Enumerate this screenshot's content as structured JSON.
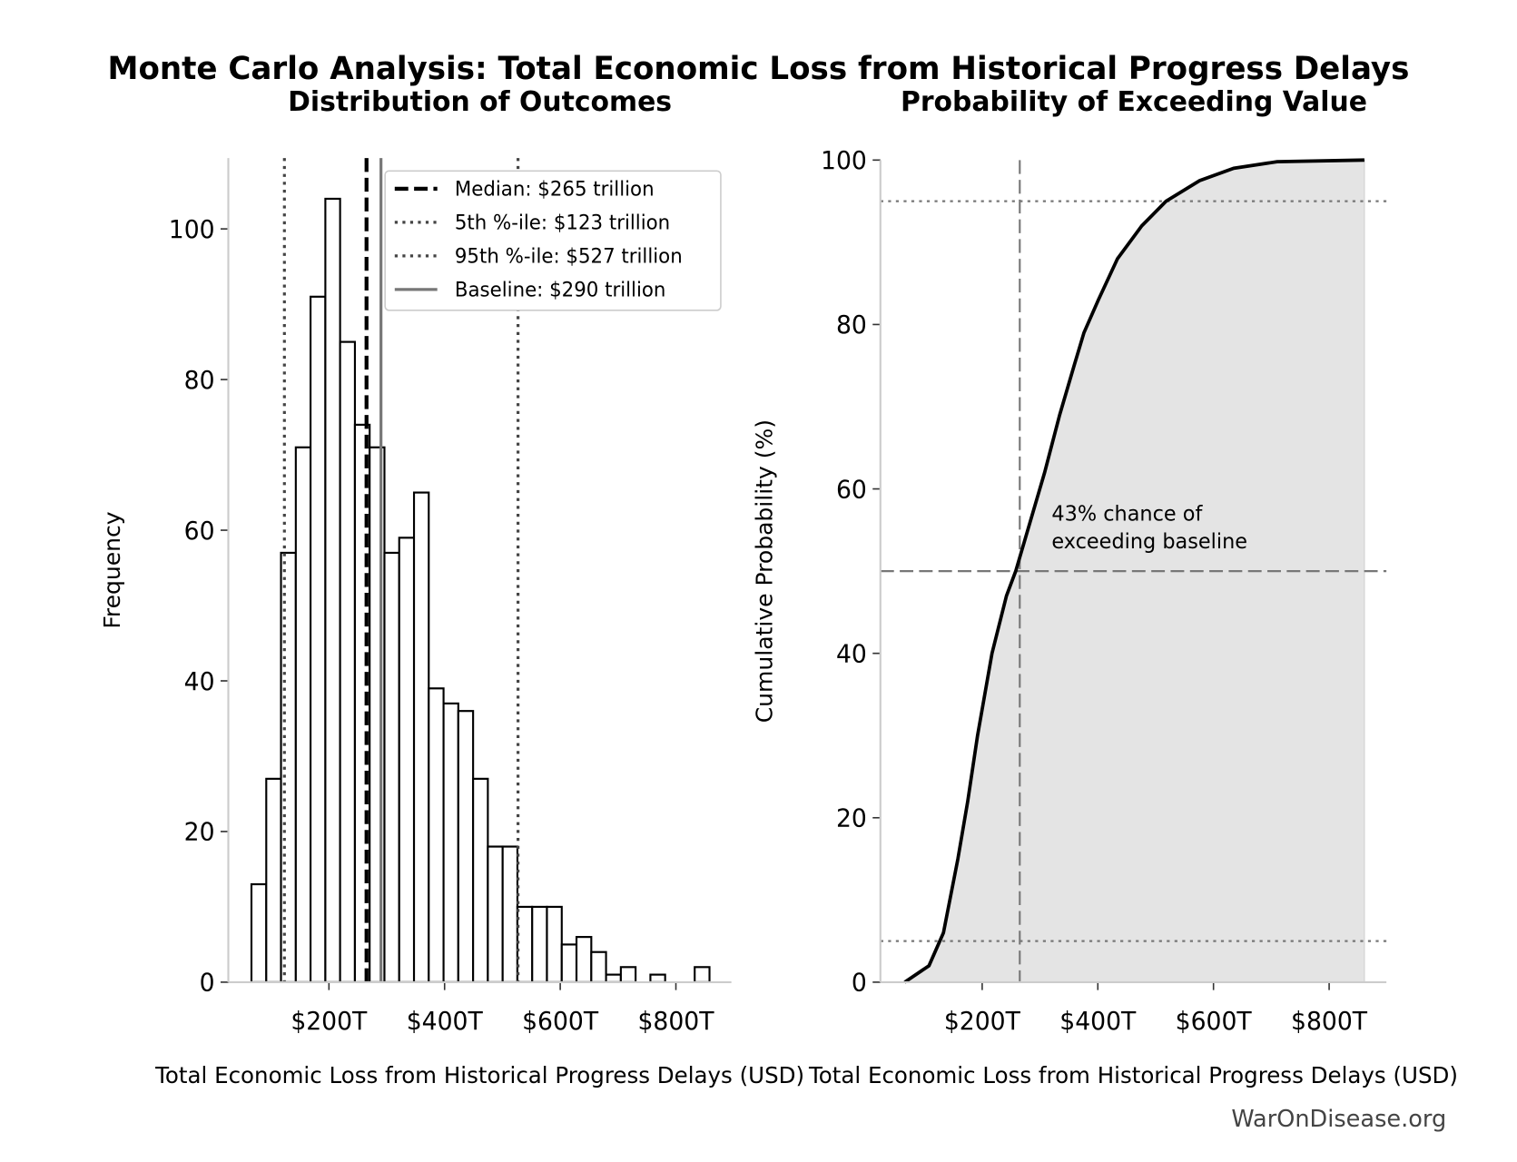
{
  "title": "Monte Carlo Analysis: Total Economic Loss from Historical Progress Delays",
  "footer": "WarOnDisease.org",
  "chart_data": [
    {
      "type": "histogram",
      "title": "Distribution of Outcomes",
      "x_label": "Total Economic Loss from Historical Progress Delays (USD)",
      "y_label": "Frequency",
      "bins": [
        66.0,
        91.6,
        117.1,
        142.7,
        168.2,
        193.8,
        219.3,
        244.9,
        270.4,
        296.0,
        321.5,
        347.1,
        372.6,
        398.2,
        423.7,
        449.3,
        474.8,
        500.4,
        525.9,
        551.5,
        577.0,
        602.6,
        628.1,
        653.7,
        679.2,
        704.8,
        730.3,
        755.9,
        781.4,
        807.0,
        832.5,
        858.1
      ],
      "counts": [
        13,
        27,
        57,
        71,
        91,
        104,
        85,
        74,
        71,
        57,
        59,
        65,
        39,
        37,
        36,
        27,
        18,
        18,
        10,
        10,
        10,
        5,
        6,
        4,
        1,
        2,
        0,
        1,
        0,
        0,
        2
      ],
      "color": "#ffffff",
      "edgecolor": "#000000",
      "xlim": [
        26,
        896
      ],
      "ylim": [
        0,
        109.4
      ],
      "xticks": [
        {
          "value": 200,
          "label": "$200T"
        },
        {
          "value": 400,
          "label": "$400T"
        },
        {
          "value": 600,
          "label": "$600T"
        },
        {
          "value": 800,
          "label": "$800T"
        }
      ],
      "yticks": [
        0,
        20,
        40,
        60,
        80,
        100
      ],
      "legend": "upper right",
      "reference_lines": [
        {
          "name": "Median: $265 trillion",
          "value": 265,
          "style": "dashed",
          "color": "#000000",
          "width": 4
        },
        {
          "name": "5th %-ile: $123 trillion",
          "value": 123,
          "style": "dotted",
          "color": "#444444",
          "width": 3
        },
        {
          "name": "95th %-ile: $527 trillion",
          "value": 527,
          "style": "dotted",
          "color": "#444444",
          "width": 3
        },
        {
          "name": "Baseline: $290 trillion",
          "value": 290,
          "style": "solid",
          "color": "#777777",
          "width": 3
        }
      ]
    },
    {
      "type": "line",
      "title": "Probability of Exceeding Value",
      "x_label": "Total Economic Loss from Historical Progress Delays (USD)",
      "y_label": "Cumulative Probability (%)",
      "x": [
        66,
        108,
        133,
        158,
        175,
        192,
        217,
        242,
        258,
        283,
        308,
        334,
        359,
        376,
        401,
        434,
        476,
        518,
        576,
        635,
        710,
        861
      ],
      "series": [
        {
          "color": "#000000",
          "fill": "#e4e4e4",
          "values": [
            0,
            2,
            6,
            15,
            22,
            30,
            40,
            47,
            50,
            56,
            62,
            69,
            75,
            79,
            83,
            88,
            92,
            95,
            97.5,
            99,
            99.8,
            100
          ]
        }
      ],
      "xlim": [
        24,
        899
      ],
      "ylim": [
        0,
        100
      ],
      "xticks": [
        {
          "value": 200,
          "label": "$200T"
        },
        {
          "value": 400,
          "label": "$400T"
        },
        {
          "value": 600,
          "label": "$600T"
        },
        {
          "value": 800,
          "label": "$800T"
        }
      ],
      "yticks": [
        0,
        20,
        40,
        60,
        80,
        100
      ],
      "hlines": [
        {
          "value": 95,
          "style": "dotted"
        },
        {
          "value": 50,
          "style": "dashed"
        },
        {
          "value": 5,
          "style": "dotted"
        }
      ],
      "vlines": [
        {
          "value": 265,
          "style": "dashed"
        }
      ],
      "annotation": [
        "43% chance of",
        "exceeding baseline"
      ]
    }
  ]
}
